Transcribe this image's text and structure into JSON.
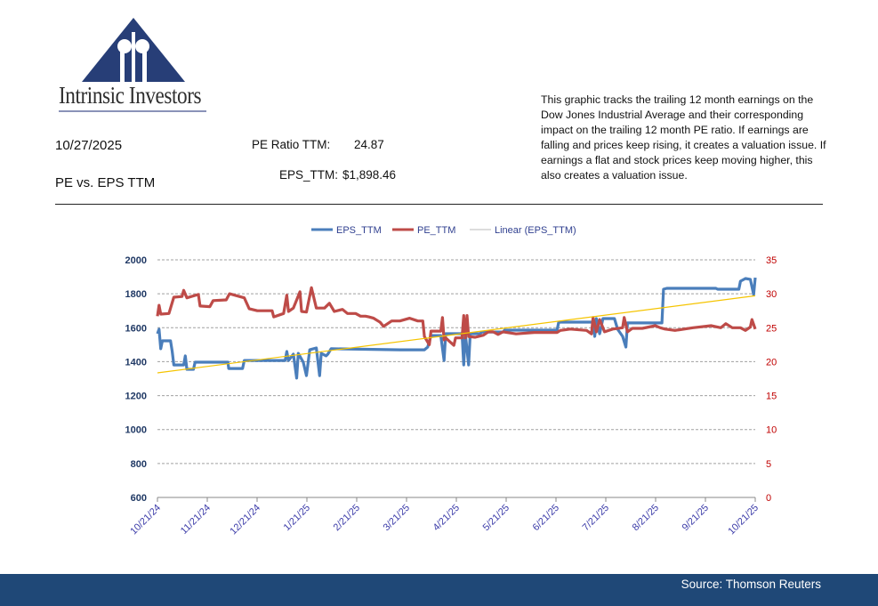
{
  "logo": {
    "name": "Intrinsic Investors"
  },
  "header": {
    "date": "10/27/2025",
    "subtitle": "PE vs. EPS TTM",
    "pe_label": "PE Ratio TTM:",
    "pe_value": "24.87",
    "eps_label": "EPS_TTM:",
    "eps_value": "$1,898.46",
    "description": "This graphic tracks the trailing 12 month earnings on the Dow Jones Industrial Average and their corresponding impact on the trailing 12 month PE ratio.  If earnings are falling and prices keep rising, it creates a valuation issue.  If earnings a flat and stock prices keep moving higher, this also creates a valuation issue."
  },
  "footer": {
    "source": "Source: Thomson Reuters"
  },
  "colors": {
    "eps": "#4a7ebb",
    "pe": "#be4b48",
    "trend": "#f5c400",
    "left_axis": "#1f3864",
    "right_axis": "#c00000",
    "x_labels": "#3b3ba8"
  },
  "chart_data": {
    "type": "line",
    "title": "",
    "legend": [
      "EPS_TTM",
      "PE_TTM",
      "Linear (EPS_TTM)"
    ],
    "legend_placement": "top",
    "x_unit": "days since 10/21/24",
    "x_ticks": [
      "10/21/24",
      "11/21/24",
      "12/21/24",
      "1/21/25",
      "2/21/25",
      "3/21/25",
      "4/21/25",
      "5/21/25",
      "6/21/25",
      "7/21/25",
      "8/21/25",
      "9/21/25",
      "10/21/25"
    ],
    "xlim": [
      0,
      365
    ],
    "y_left": {
      "ticks": [
        "600",
        "800",
        "1000",
        "1200",
        "1400",
        "1600",
        "1800",
        "2000"
      ],
      "ylim": [
        600,
        2000
      ]
    },
    "y_right": {
      "ticks": [
        "0",
        "5",
        "10",
        "15",
        "20",
        "25",
        "30",
        "35"
      ],
      "ylim": [
        0,
        35
      ]
    },
    "grid": true,
    "series": [
      {
        "name": "EPS_TTM",
        "axis": "left",
        "points": [
          [
            0,
            1565
          ],
          [
            1,
            1591
          ],
          [
            2,
            1476
          ],
          [
            3,
            1523
          ],
          [
            8,
            1523
          ],
          [
            9,
            1460
          ],
          [
            10,
            1381
          ],
          [
            16,
            1381
          ],
          [
            17,
            1434
          ],
          [
            18,
            1355
          ],
          [
            22,
            1355
          ],
          [
            23,
            1397
          ],
          [
            43,
            1397
          ],
          [
            43.5,
            1360
          ],
          [
            52,
            1360
          ],
          [
            53,
            1407
          ],
          [
            78,
            1407
          ],
          [
            79,
            1460
          ],
          [
            80,
            1407
          ],
          [
            83,
            1444
          ],
          [
            85,
            1303
          ],
          [
            86,
            1449
          ],
          [
            89,
            1397
          ],
          [
            91,
            1318
          ],
          [
            93,
            1470
          ],
          [
            97,
            1481
          ],
          [
            99,
            1318
          ],
          [
            100,
            1449
          ],
          [
            103,
            1434
          ],
          [
            104,
            1444
          ],
          [
            106,
            1476
          ],
          [
            148,
            1470
          ],
          [
            163,
            1470
          ],
          [
            165,
            1486
          ],
          [
            167,
            1554
          ],
          [
            173,
            1554
          ],
          [
            175,
            1407
          ],
          [
            176,
            1565
          ],
          [
            186,
            1565
          ],
          [
            187,
            1381
          ],
          [
            188,
            1565
          ],
          [
            190,
            1381
          ],
          [
            191,
            1565
          ],
          [
            197,
            1565
          ],
          [
            198,
            1575
          ],
          [
            211,
            1575
          ],
          [
            212,
            1586
          ],
          [
            244,
            1586
          ],
          [
            245,
            1633
          ],
          [
            266,
            1633
          ],
          [
            267,
            1549
          ],
          [
            268,
            1654
          ],
          [
            270,
            1565
          ],
          [
            272,
            1654
          ],
          [
            279,
            1654
          ],
          [
            281,
            1591
          ],
          [
            284,
            1549
          ],
          [
            286,
            1486
          ],
          [
            287,
            1628
          ],
          [
            308,
            1628
          ],
          [
            309,
            1827
          ],
          [
            311,
            1832
          ],
          [
            341,
            1832
          ],
          [
            342,
            1827
          ],
          [
            355,
            1827
          ],
          [
            356,
            1874
          ],
          [
            359,
            1890
          ],
          [
            362,
            1885
          ],
          [
            364,
            1795
          ],
          [
            365,
            1895
          ]
        ]
      },
      {
        "name": "PE_TTM",
        "axis": "right",
        "points": [
          [
            0,
            26.7
          ],
          [
            1,
            28.3
          ],
          [
            2,
            27.0
          ],
          [
            7,
            27.1
          ],
          [
            10,
            29.5
          ],
          [
            15,
            29.6
          ],
          [
            16,
            30.5
          ],
          [
            18,
            29.4
          ],
          [
            25,
            29.9
          ],
          [
            26,
            28.2
          ],
          [
            32,
            28.1
          ],
          [
            34,
            29.0
          ],
          [
            42,
            29.1
          ],
          [
            44,
            30.0
          ],
          [
            50,
            29.6
          ],
          [
            53,
            29.4
          ],
          [
            56,
            27.8
          ],
          [
            61,
            27.5
          ],
          [
            70,
            27.5
          ],
          [
            71,
            26.6
          ],
          [
            77,
            27.1
          ],
          [
            79,
            29.8
          ],
          [
            80,
            27.4
          ],
          [
            83,
            27.9
          ],
          [
            87,
            30.3
          ],
          [
            88,
            27.4
          ],
          [
            91,
            27.3
          ],
          [
            94,
            30.9
          ],
          [
            97,
            27.9
          ],
          [
            102,
            27.9
          ],
          [
            105,
            28.6
          ],
          [
            108,
            27.4
          ],
          [
            113,
            27.7
          ],
          [
            116,
            27.1
          ],
          [
            121,
            27.1
          ],
          [
            124,
            26.7
          ],
          [
            127,
            26.7
          ],
          [
            129,
            26.6
          ],
          [
            132,
            26.4
          ],
          [
            136,
            25.8
          ],
          [
            138,
            25.2
          ],
          [
            143,
            26.0
          ],
          [
            148,
            26.0
          ],
          [
            154,
            26.4
          ],
          [
            159,
            26.0
          ],
          [
            162,
            26.0
          ],
          [
            163,
            23.7
          ],
          [
            166,
            22.5
          ],
          [
            167,
            24.5
          ],
          [
            173,
            24.5
          ],
          [
            174,
            26.5
          ],
          [
            175,
            23.2
          ],
          [
            176,
            23.5
          ],
          [
            181,
            22.4
          ],
          [
            182,
            23.5
          ],
          [
            186,
            23.5
          ],
          [
            187,
            26.8
          ],
          [
            188,
            23.5
          ],
          [
            189,
            26.8
          ],
          [
            190,
            23.7
          ],
          [
            194,
            23.6
          ],
          [
            199,
            23.9
          ],
          [
            202,
            24.4
          ],
          [
            205,
            24.4
          ],
          [
            208,
            24.0
          ],
          [
            211,
            24.4
          ],
          [
            219,
            24.1
          ],
          [
            230,
            24.3
          ],
          [
            244,
            24.3
          ],
          [
            246,
            24.6
          ],
          [
            252,
            24.8
          ],
          [
            262,
            24.6
          ],
          [
            265,
            24.1
          ],
          [
            266,
            26.5
          ],
          [
            268,
            24.4
          ],
          [
            270,
            26.2
          ],
          [
            273,
            24.4
          ],
          [
            278,
            24.8
          ],
          [
            284,
            25.0
          ],
          [
            285,
            26.5
          ],
          [
            287,
            24.4
          ],
          [
            290,
            24.9
          ],
          [
            296,
            24.9
          ],
          [
            304,
            25.3
          ],
          [
            307,
            25.0
          ],
          [
            310,
            24.8
          ],
          [
            316,
            24.6
          ],
          [
            327,
            25.0
          ],
          [
            338,
            25.3
          ],
          [
            344,
            25.0
          ],
          [
            347,
            25.6
          ],
          [
            351,
            25.0
          ],
          [
            356,
            25.0
          ],
          [
            359,
            24.6
          ],
          [
            362,
            25.1
          ],
          [
            363,
            26.2
          ],
          [
            365,
            24.8
          ]
        ]
      },
      {
        "name": "Linear (EPS_TTM)",
        "axis": "left",
        "points": [
          [
            0,
            1334
          ],
          [
            365,
            1788
          ]
        ]
      }
    ]
  }
}
